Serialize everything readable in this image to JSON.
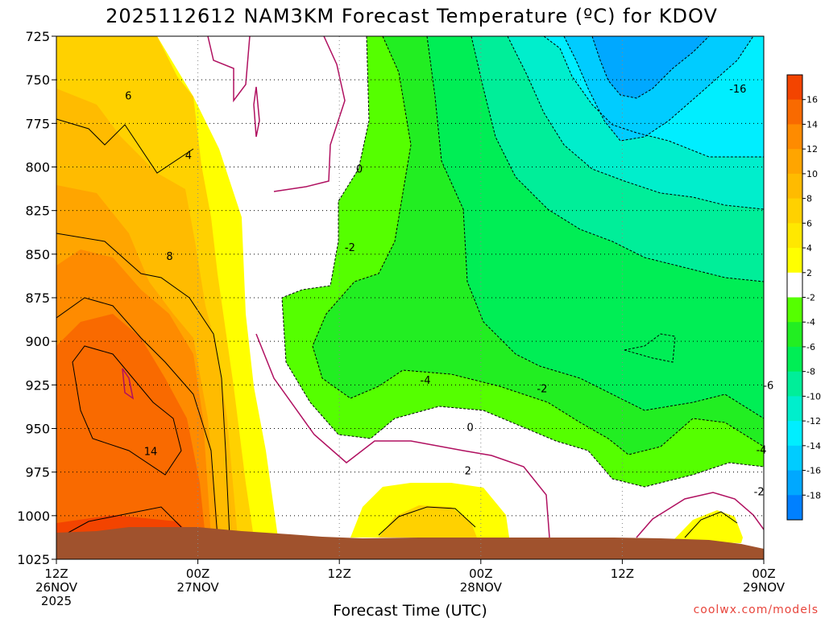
{
  "chart_data": {
    "type": "heatmap",
    "title": "2025112612 NAM3KM Forecast Temperature (ºC) for KDOV",
    "xlabel": "Forecast Time (UTC)",
    "ylabel": "",
    "credit": "coolwx.com/models",
    "x_ticks": [
      {
        "top": "12Z",
        "date": "26NOV",
        "year": "2025",
        "hour": 0
      },
      {
        "top": "00Z",
        "date": "27NOV",
        "year": "",
        "hour": 12
      },
      {
        "top": "12Z",
        "date": "",
        "year": "",
        "hour": 24
      },
      {
        "top": "00Z",
        "date": "28NOV",
        "year": "",
        "hour": 36
      },
      {
        "top": "12Z",
        "date": "",
        "year": "",
        "hour": 48
      },
      {
        "top": "00Z",
        "date": "29NOV",
        "year": "",
        "hour": 60
      }
    ],
    "y_axis": {
      "reversed": true,
      "range": [
        725,
        1025
      ],
      "ticks": [
        725,
        750,
        775,
        800,
        825,
        850,
        875,
        900,
        925,
        950,
        975,
        1000,
        1025
      ]
    },
    "grid": true,
    "colorbar": {
      "levels": [
        18,
        16,
        14,
        12,
        10,
        8,
        6,
        4,
        2,
        -2,
        -4,
        -6,
        -8,
        -10,
        -12,
        -14,
        -16,
        -18
      ],
      "labels": [
        "16",
        "14",
        "12",
        "10",
        "8",
        "6",
        "4",
        "2",
        "-2",
        "-4",
        "-6",
        "-8",
        "-10",
        "-12",
        "-14",
        "-16",
        "-18"
      ],
      "colors": [
        "#f34400",
        "#f96a00",
        "#fe8b00",
        "#ffa500",
        "#ffbb00",
        "#ffd100",
        "#ffe800",
        "#ffff00",
        "#ffffff",
        "#55ff00",
        "#22ee22",
        "#00ee55",
        "#00ee99",
        "#00eecc",
        "#00eeff",
        "#00ccff",
        "#00a8ff",
        "#0080ff"
      ]
    },
    "contour_labels": [
      {
        "text": "6",
        "hour": 6.1,
        "p": 759
      },
      {
        "text": "4",
        "hour": 11.2,
        "p": 793
      },
      {
        "text": "0",
        "hour": 25.7,
        "p": 801
      },
      {
        "text": "-2",
        "hour": 24.9,
        "p": 846
      },
      {
        "text": "8",
        "hour": 9.6,
        "p": 851
      },
      {
        "text": "-4",
        "hour": 31.3,
        "p": 922
      },
      {
        "text": "-2",
        "hour": 41.2,
        "p": 927
      },
      {
        "text": "-6",
        "hour": 60.4,
        "p": 925
      },
      {
        "text": "0",
        "hour": 35.1,
        "p": 949
      },
      {
        "text": "-4",
        "hour": 59.8,
        "p": 962
      },
      {
        "text": "14",
        "hour": 8.0,
        "p": 963
      },
      {
        "text": "2",
        "hour": 34.9,
        "p": 974
      },
      {
        "text": "-2",
        "hour": 59.6,
        "p": 986
      },
      {
        "text": "-16",
        "hour": 57.8,
        "p": 755
      }
    ]
  }
}
